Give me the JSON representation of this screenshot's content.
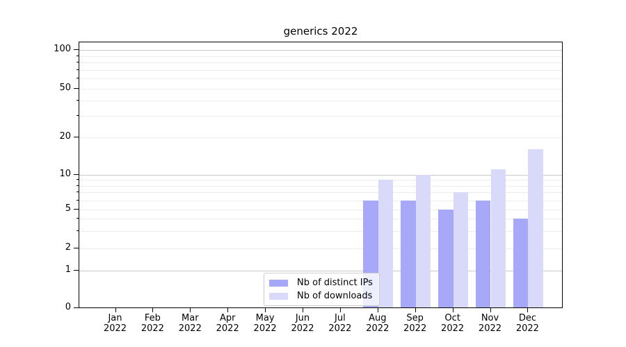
{
  "figure": {
    "background": "#ffffff"
  },
  "chart_data": {
    "type": "bar",
    "title": "generics 2022",
    "categories": [
      "Jan",
      "Feb",
      "Mar",
      "Apr",
      "May",
      "Jun",
      "Jul",
      "Aug",
      "Sep",
      "Oct",
      "Nov",
      "Dec"
    ],
    "category_year": "2022",
    "series": [
      {
        "name": "Nb of distinct IPs",
        "color": "#a7a8f7",
        "values": [
          0,
          0,
          0,
          0,
          0,
          0,
          0,
          6,
          6,
          5,
          6,
          4
        ]
      },
      {
        "name": "Nb of downloads",
        "color": "#d9daf9",
        "values": [
          0,
          0,
          0,
          0,
          0,
          0,
          0,
          9,
          10,
          7,
          11,
          16
        ]
      }
    ],
    "xlabel": "",
    "ylabel": "",
    "yscale": "symlog",
    "ylim": [
      0,
      120
    ],
    "y_ticks": [
      0,
      1,
      2,
      5,
      10,
      20,
      50,
      100
    ],
    "y_minor_ticks": [
      3,
      4,
      6,
      7,
      8,
      9,
      30,
      40,
      60,
      70,
      80,
      90
    ],
    "y_major_gridlines": [
      1,
      10,
      100
    ],
    "grid": "both",
    "legend_position": "lower center",
    "colors": {
      "major_grid": "#c9c9c9",
      "minor_grid": "#ededed",
      "axis": "#000000",
      "text": "#000000"
    }
  }
}
